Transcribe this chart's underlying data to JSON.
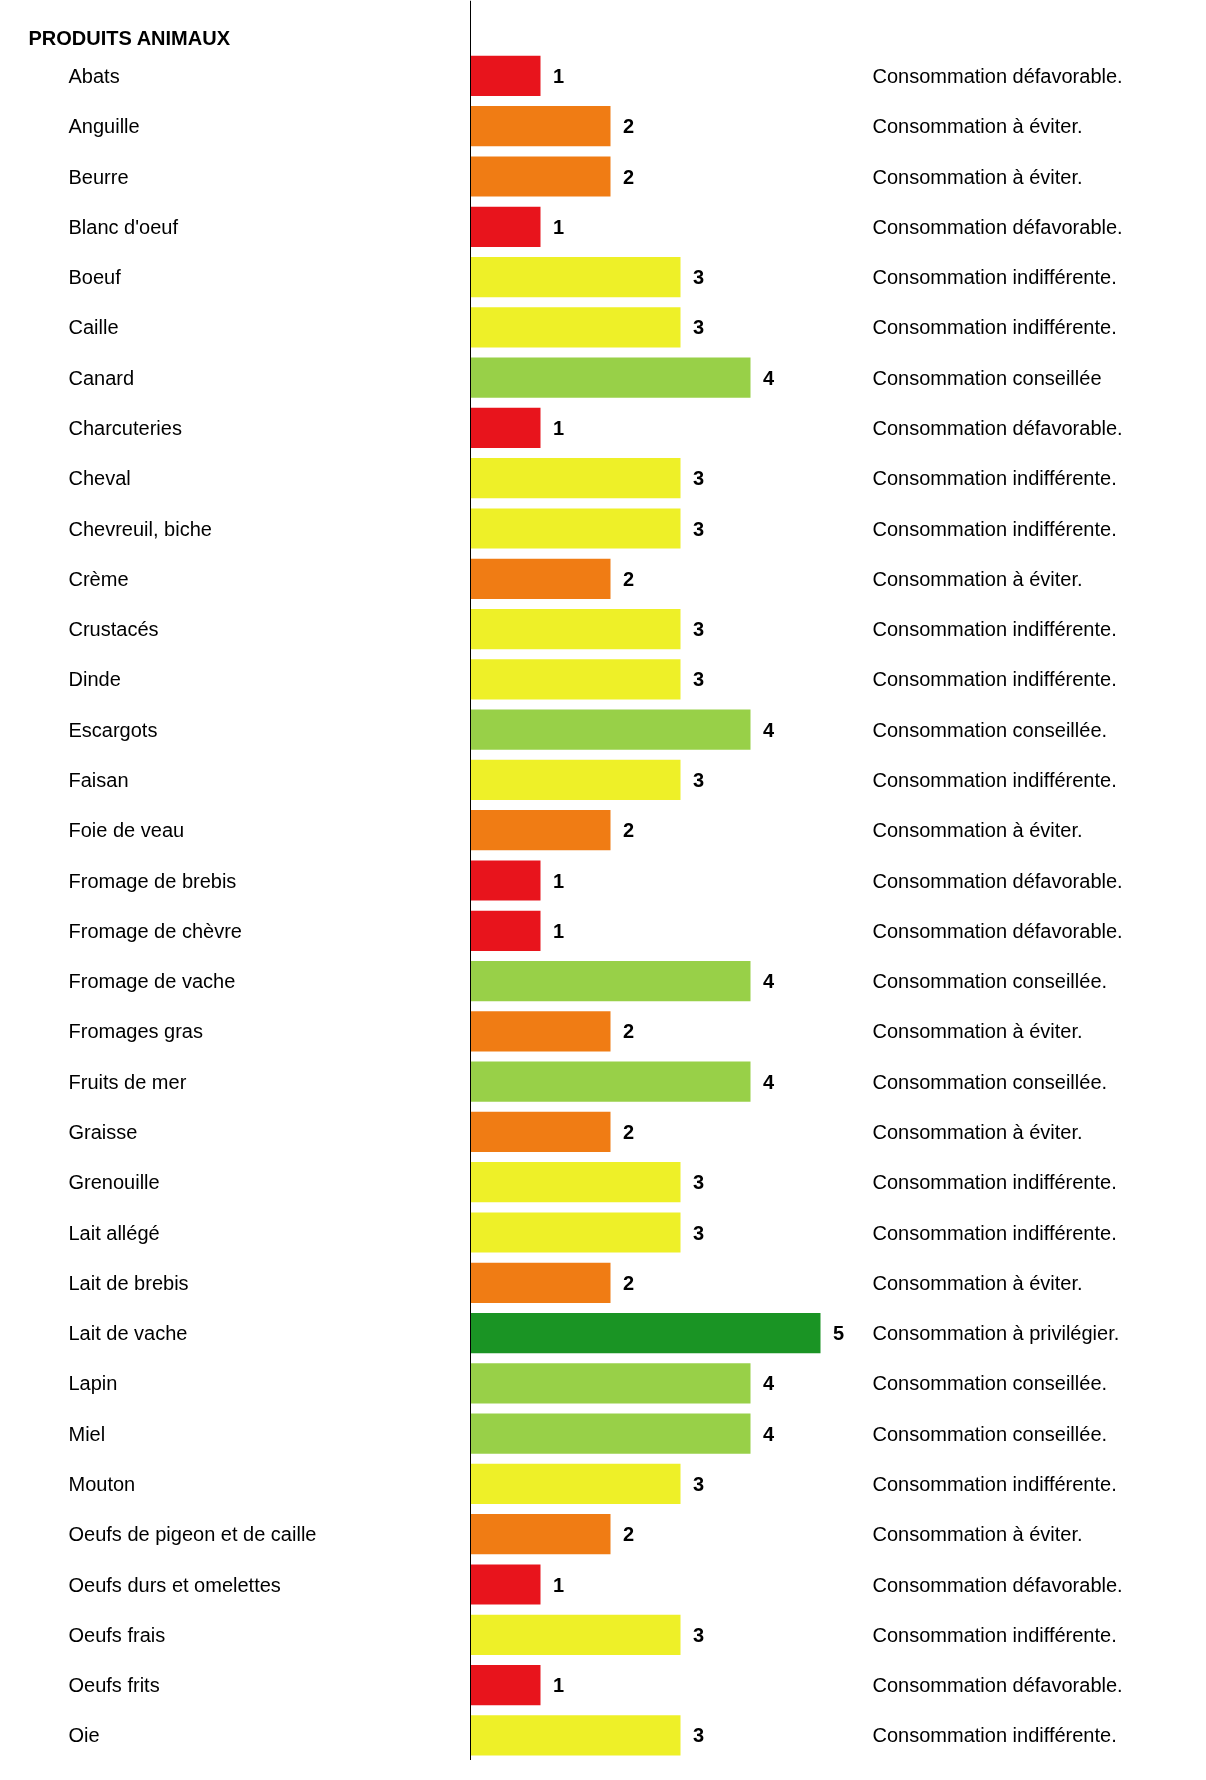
{
  "chart_data": {
    "type": "bar",
    "orientation": "horizontal",
    "subtitle": "PRODUITS ANIMAUX",
    "categories": [
      "Abats",
      "Anguille",
      "Beurre",
      "Blanc d'oeuf",
      "Boeuf",
      "Caille",
      "Canard",
      "Charcuteries",
      "Cheval",
      "Chevreuil, biche",
      "Crème",
      "Crustacés",
      "Dinde",
      "Escargots",
      "Faisan",
      "Foie de veau",
      "Fromage de brebis",
      "Fromage de chèvre",
      "Fromage de vache",
      "Fromages gras",
      "Fruits de mer",
      "Graisse",
      "Grenouille",
      "Lait allégé",
      "Lait de brebis",
      "Lait de vache",
      "Lapin",
      "Miel",
      "Mouton",
      "Oeufs de pigeon et de caille",
      "Oeufs durs et omelettes",
      "Oeufs frais",
      "Oeufs frits",
      "Oie"
    ],
    "values": [
      1,
      2,
      2,
      1,
      3,
      3,
      4,
      1,
      3,
      3,
      2,
      3,
      3,
      4,
      3,
      2,
      1,
      1,
      4,
      2,
      4,
      2,
      3,
      3,
      2,
      5,
      4,
      4,
      3,
      2,
      1,
      3,
      1,
      3
    ],
    "colors": [
      "#e8141c",
      "#f07c14",
      "#f07c14",
      "#e8141c",
      "#eef028",
      "#eef028",
      "#98d048",
      "#e8141c",
      "#eef028",
      "#eef028",
      "#f07c14",
      "#eef028",
      "#eef028",
      "#98d048",
      "#eef028",
      "#f07c14",
      "#e8141c",
      "#e8141c",
      "#98d048",
      "#f07c14",
      "#98d048",
      "#f07c14",
      "#eef028",
      "#eef028",
      "#f07c14",
      "#1a9424",
      "#98d048",
      "#98d048",
      "#eef028",
      "#f07c14",
      "#e8141c",
      "#eef028",
      "#e8141c",
      "#eef028"
    ],
    "data_labels": true,
    "grid": false,
    "annotations": [
      "Consommation défavorable.",
      "Consommation à éviter.",
      "Consommation à éviter.",
      "Consommation défavorable.",
      "Consommation indifférente.",
      "Consommation indifférente.",
      "Consommation conseillée",
      "Consommation défavorable.",
      "Consommation indifférente.",
      "Consommation indifférente.",
      "Consommation à éviter.",
      "Consommation indifférente.",
      "Consommation indifférente.",
      "Consommation conseillée.",
      "Consommation indifférente.",
      "Consommation à éviter.",
      "Consommation défavorable.",
      "Consommation défavorable.",
      "Consommation conseillée.",
      "Consommation à éviter.",
      "Consommation conseillée.",
      "Consommation à éviter.",
      "Consommation indifférente.",
      "Consommation indifférente.",
      "Consommation à éviter.",
      "Consommation à privilégier.",
      "Consommation conseillée.",
      "Consommation conseillée.",
      "Consommation indifférente.",
      "Consommation à éviter.",
      "Consommation défavorable.",
      "Consommation indifférente.",
      "Consommation défavorable.",
      "Consommation indifférente."
    ]
  }
}
